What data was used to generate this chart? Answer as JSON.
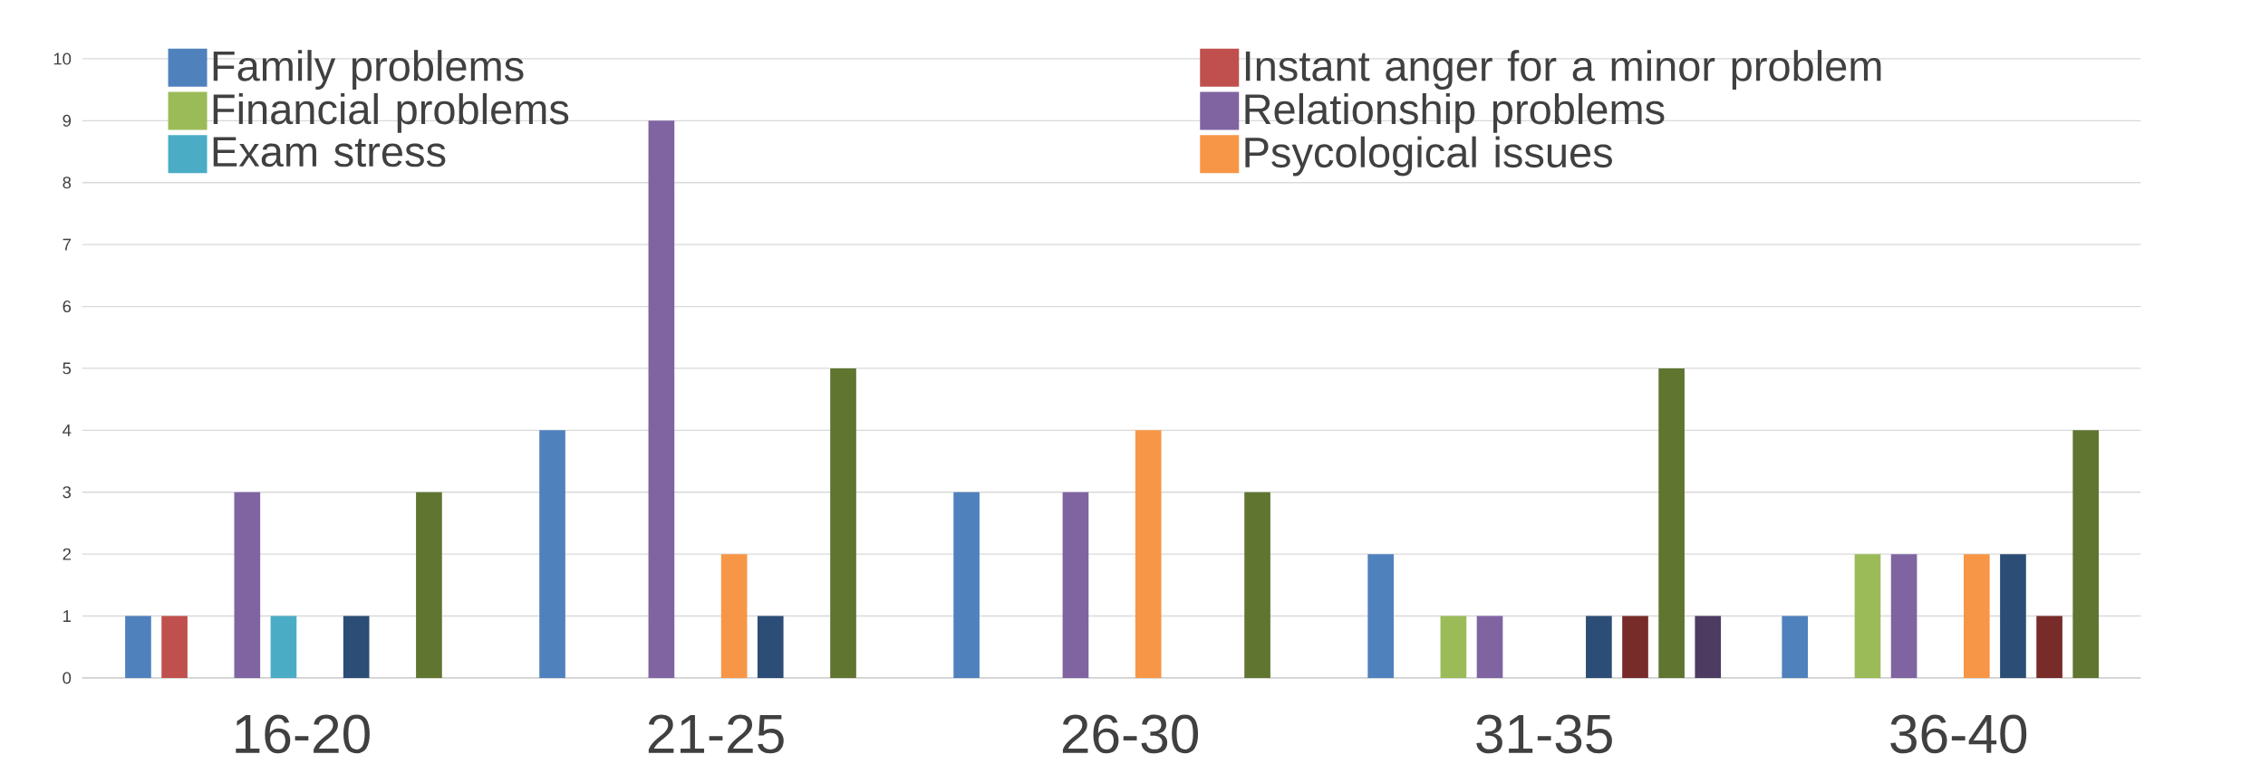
{
  "chart_data": {
    "type": "bar",
    "categories": [
      "16-20",
      "21-25",
      "26-30",
      "31-35",
      "36-40"
    ],
    "ylim": [
      0,
      10
    ],
    "yticks": [
      0,
      1,
      2,
      3,
      4,
      5,
      6,
      7,
      8,
      9,
      10
    ],
    "grid": "y",
    "legend": "top",
    "series": [
      {
        "name": "Family  problems",
        "color": "#4f81bd",
        "values": [
          1,
          4,
          3,
          2,
          1
        ]
      },
      {
        "name": "Instant anger  for  a minor  problem",
        "color": "#c0504d",
        "values": [
          1,
          0,
          0,
          0,
          0
        ]
      },
      {
        "name": "Financial  problems",
        "color": "#9bbb59",
        "values": [
          0,
          0,
          0,
          1,
          2
        ]
      },
      {
        "name": "Relationship problems",
        "color": "#8064a2",
        "values": [
          3,
          9,
          3,
          1,
          2
        ]
      },
      {
        "name": "Exam  stress",
        "color": "#4bacc6",
        "values": [
          1,
          0,
          0,
          0,
          0
        ]
      },
      {
        "name": "Psycological  issues",
        "color": "#f79646",
        "values": [
          0,
          2,
          4,
          0,
          2
        ]
      },
      {
        "color": "#2c4d75",
        "values": [
          1,
          1,
          0,
          1,
          2
        ]
      },
      {
        "color": "#772c2a",
        "values": [
          0,
          0,
          0,
          1,
          1
        ]
      },
      {
        "color": "#5f7530",
        "values": [
          3,
          5,
          3,
          5,
          4
        ]
      },
      {
        "color": "#4d3b62",
        "values": [
          0,
          0,
          0,
          1,
          0
        ]
      }
    ]
  }
}
